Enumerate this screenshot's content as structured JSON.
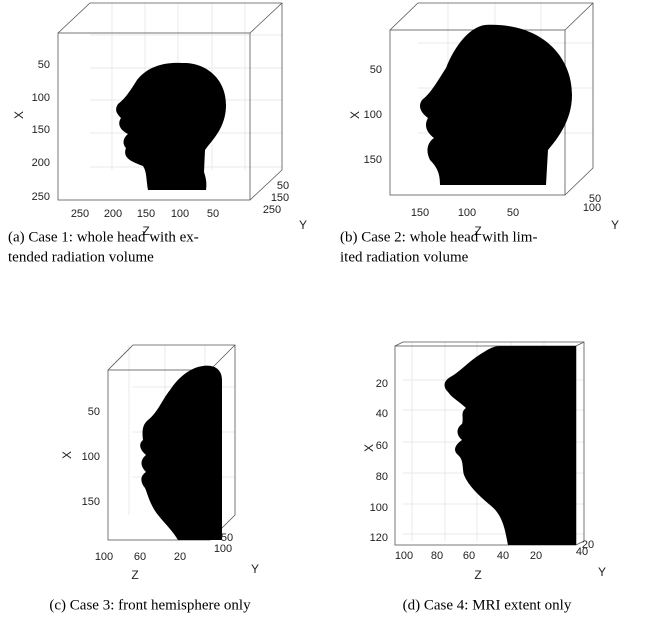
{
  "panels": [
    {
      "x_label": "X",
      "y_label": "Y",
      "z_label": "Z",
      "x_ticks": [
        50,
        100,
        150,
        200,
        250
      ],
      "z_ticks": [
        250,
        200,
        150,
        100,
        50
      ],
      "y_ticks": [
        50,
        150,
        250
      ],
      "caption_lines": [
        "(a) Case 1: whole head with ex-",
        "tended radiation volume"
      ]
    },
    {
      "x_label": "X",
      "y_label": "Y",
      "z_label": "Z",
      "x_ticks": [
        50,
        100,
        150
      ],
      "z_ticks": [
        150,
        100,
        50
      ],
      "y_ticks": [
        50,
        100
      ],
      "caption_lines": [
        "(b) Case 2: whole head with lim-",
        "ited radiation volume"
      ]
    },
    {
      "x_label": "X",
      "y_label": "Y",
      "z_label": "Z",
      "x_ticks": [
        50,
        100,
        150
      ],
      "z_ticks": [
        100,
        60,
        20
      ],
      "y_ticks": [
        50,
        100
      ],
      "caption_lines": [
        "(c) Case 3: front hemisphere only"
      ]
    },
    {
      "x_label": "X",
      "y_label": "Y",
      "z_label": "Z",
      "x_ticks": [
        20,
        40,
        60,
        80,
        100,
        120
      ],
      "z_ticks": [
        100,
        80,
        60,
        40,
        20
      ],
      "y_ticks": [
        20,
        40
      ],
      "caption_lines": [
        "(d) Case 4: MRI extent only"
      ]
    }
  ]
}
